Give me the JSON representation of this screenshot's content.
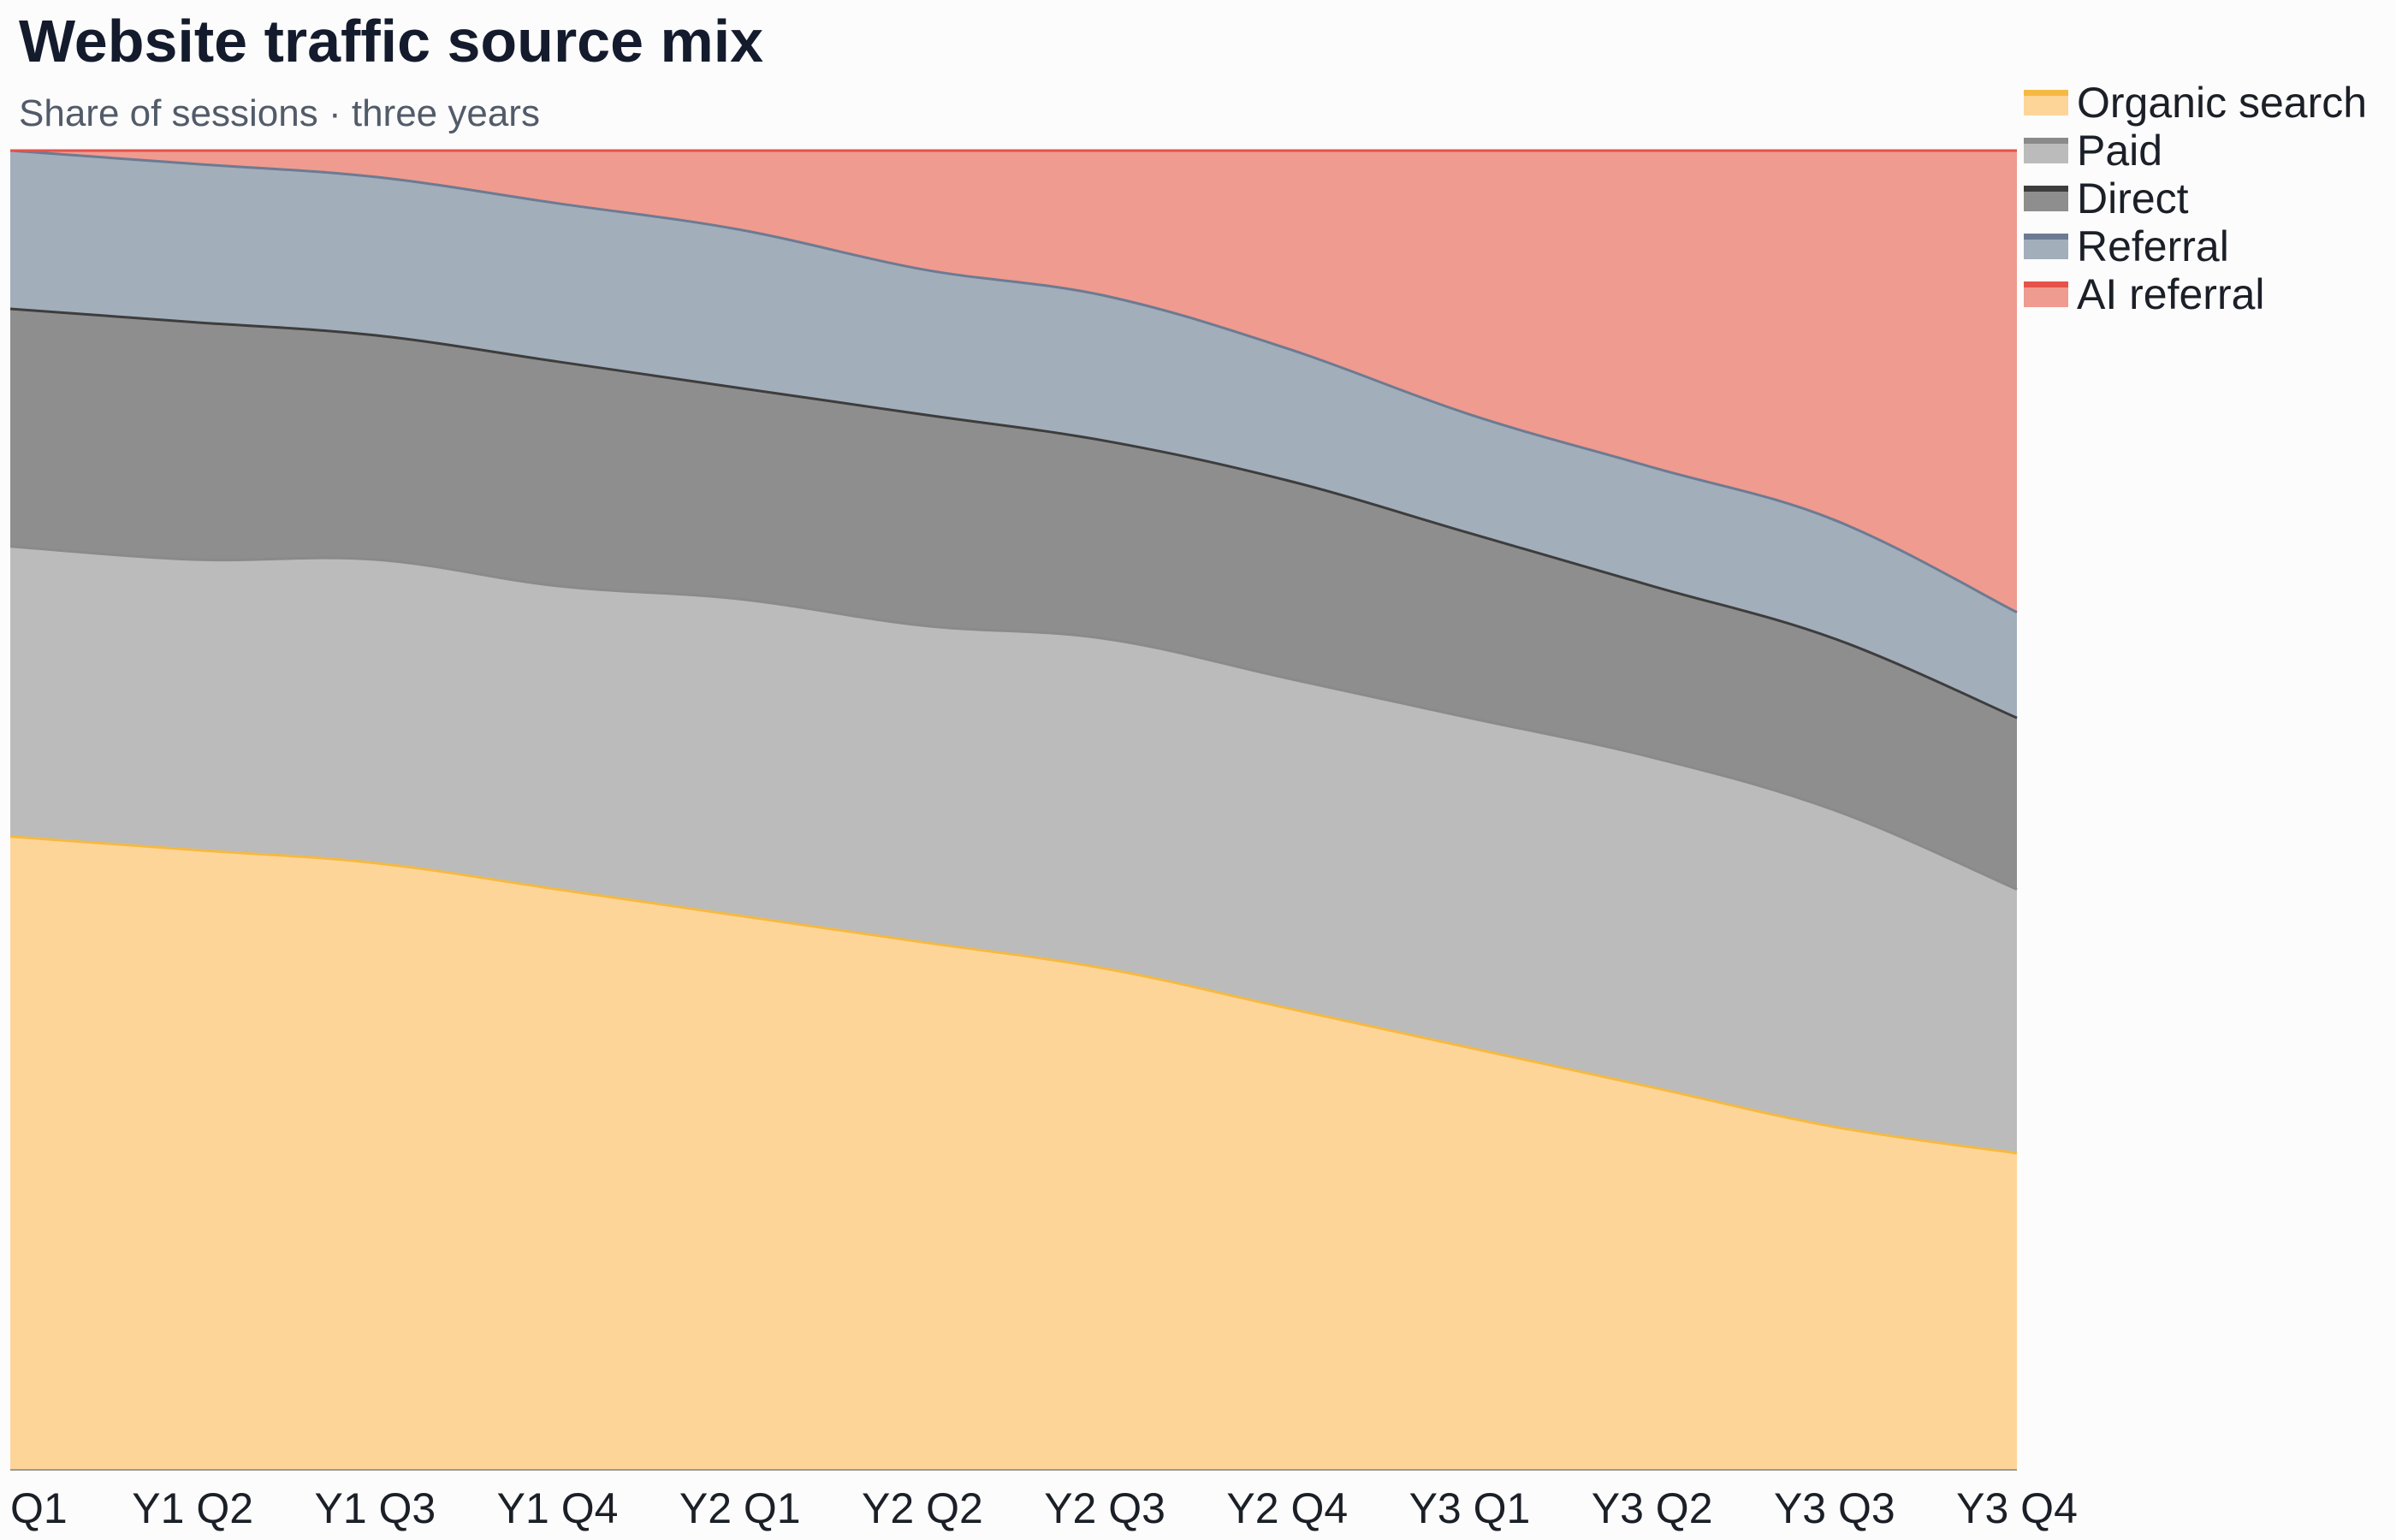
{
  "header": {
    "title": "Website traffic source mix",
    "subtitle": "Share of sessions · three years"
  },
  "chart_data": {
    "type": "area",
    "stacked": true,
    "normalized": true,
    "categories": [
      "Q1",
      "Y1 Q2",
      "Y1 Q3",
      "Y1 Q4",
      "Y2 Q1",
      "Y2 Q2",
      "Y2 Q3",
      "Y2 Q4",
      "Y3 Q1",
      "Y3 Q2",
      "Y3 Q3",
      "Y3 Q4"
    ],
    "ylim": [
      0,
      100
    ],
    "grid": false,
    "legend_position": "top-right",
    "series": [
      {
        "name": "Organic search",
        "values": [
          48,
          47,
          46,
          44,
          42,
          40,
          38,
          35,
          32,
          29,
          26,
          24
        ],
        "line_color": "#f5b942",
        "fill_color": "#fdd599"
      },
      {
        "name": "Paid",
        "values": [
          22,
          22,
          23,
          23,
          24,
          24,
          25,
          25,
          25,
          25,
          24,
          20
        ],
        "line_color": "#8a8a8a",
        "fill_color": "#bbbbbb"
      },
      {
        "name": "Direct",
        "values": [
          18,
          18,
          17,
          17,
          16,
          16,
          15,
          15,
          14,
          13,
          13,
          13
        ],
        "line_color": "#3d3d3d",
        "fill_color": "#8e8e8e"
      },
      {
        "name": "Referral",
        "values": [
          12,
          12,
          12,
          12,
          12,
          11,
          11,
          10,
          9,
          9,
          9,
          8
        ],
        "line_color": "#6c7b92",
        "fill_color": "#a3aebb"
      },
      {
        "name": "AI referral",
        "values": [
          0,
          1,
          2,
          4,
          6,
          9,
          11,
          15,
          20,
          24,
          28,
          35
        ],
        "line_color": "#e5524a",
        "fill_color": "#ef9b90"
      }
    ]
  }
}
